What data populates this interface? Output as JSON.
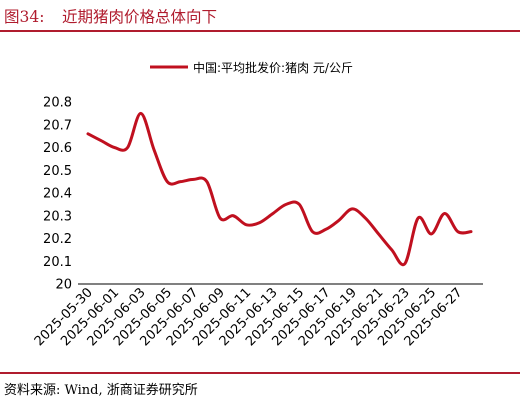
{
  "figure": {
    "number": "图34:",
    "title": "近期猪肉价格总体向下",
    "source": "资料来源: Wind, 浙商证券研究所"
  },
  "colors": {
    "accent": "#b01c2e",
    "line": "#c0101f"
  },
  "chart_data": {
    "type": "line",
    "title": "",
    "xlabel": "",
    "ylabel": "",
    "legend_position": "top-center",
    "grid": false,
    "ylim": [
      20,
      20.8
    ],
    "yticks": [
      "20",
      "20.1",
      "20.2",
      "20.3",
      "20.4",
      "20.5",
      "20.6",
      "20.7",
      "20.8"
    ],
    "x": [
      "2025-05-30",
      "2025-05-31",
      "2025-06-01",
      "2025-06-02",
      "2025-06-03",
      "2025-06-04",
      "2025-06-05",
      "2025-06-06",
      "2025-06-07",
      "2025-06-08",
      "2025-06-09",
      "2025-06-10",
      "2025-06-11",
      "2025-06-12",
      "2025-06-13",
      "2025-06-14",
      "2025-06-15",
      "2025-06-16",
      "2025-06-17",
      "2025-06-18",
      "2025-06-19",
      "2025-06-20",
      "2025-06-21",
      "2025-06-22",
      "2025-06-23",
      "2025-06-24",
      "2025-06-25",
      "2025-06-26",
      "2025-06-27",
      "2025-06-28"
    ],
    "xticks": [
      "2025-05-30",
      "2025-06-01",
      "2025-06-03",
      "2025-06-05",
      "2025-06-07",
      "2025-06-09",
      "2025-06-11",
      "2025-06-13",
      "2025-06-15",
      "2025-06-17",
      "2025-06-19",
      "2025-06-21",
      "2025-06-23",
      "2025-06-25",
      "2025-06-27"
    ],
    "series": [
      {
        "name": "中国:平均批发价:猪肉 元/公斤",
        "values": [
          20.66,
          20.63,
          20.6,
          20.6,
          20.75,
          20.59,
          20.45,
          20.45,
          20.46,
          20.45,
          20.29,
          20.3,
          20.26,
          20.27,
          20.31,
          20.35,
          20.35,
          20.23,
          20.24,
          20.28,
          20.33,
          20.29,
          20.22,
          20.15,
          20.09,
          20.29,
          20.22,
          20.31,
          20.23,
          20.23
        ]
      }
    ]
  }
}
